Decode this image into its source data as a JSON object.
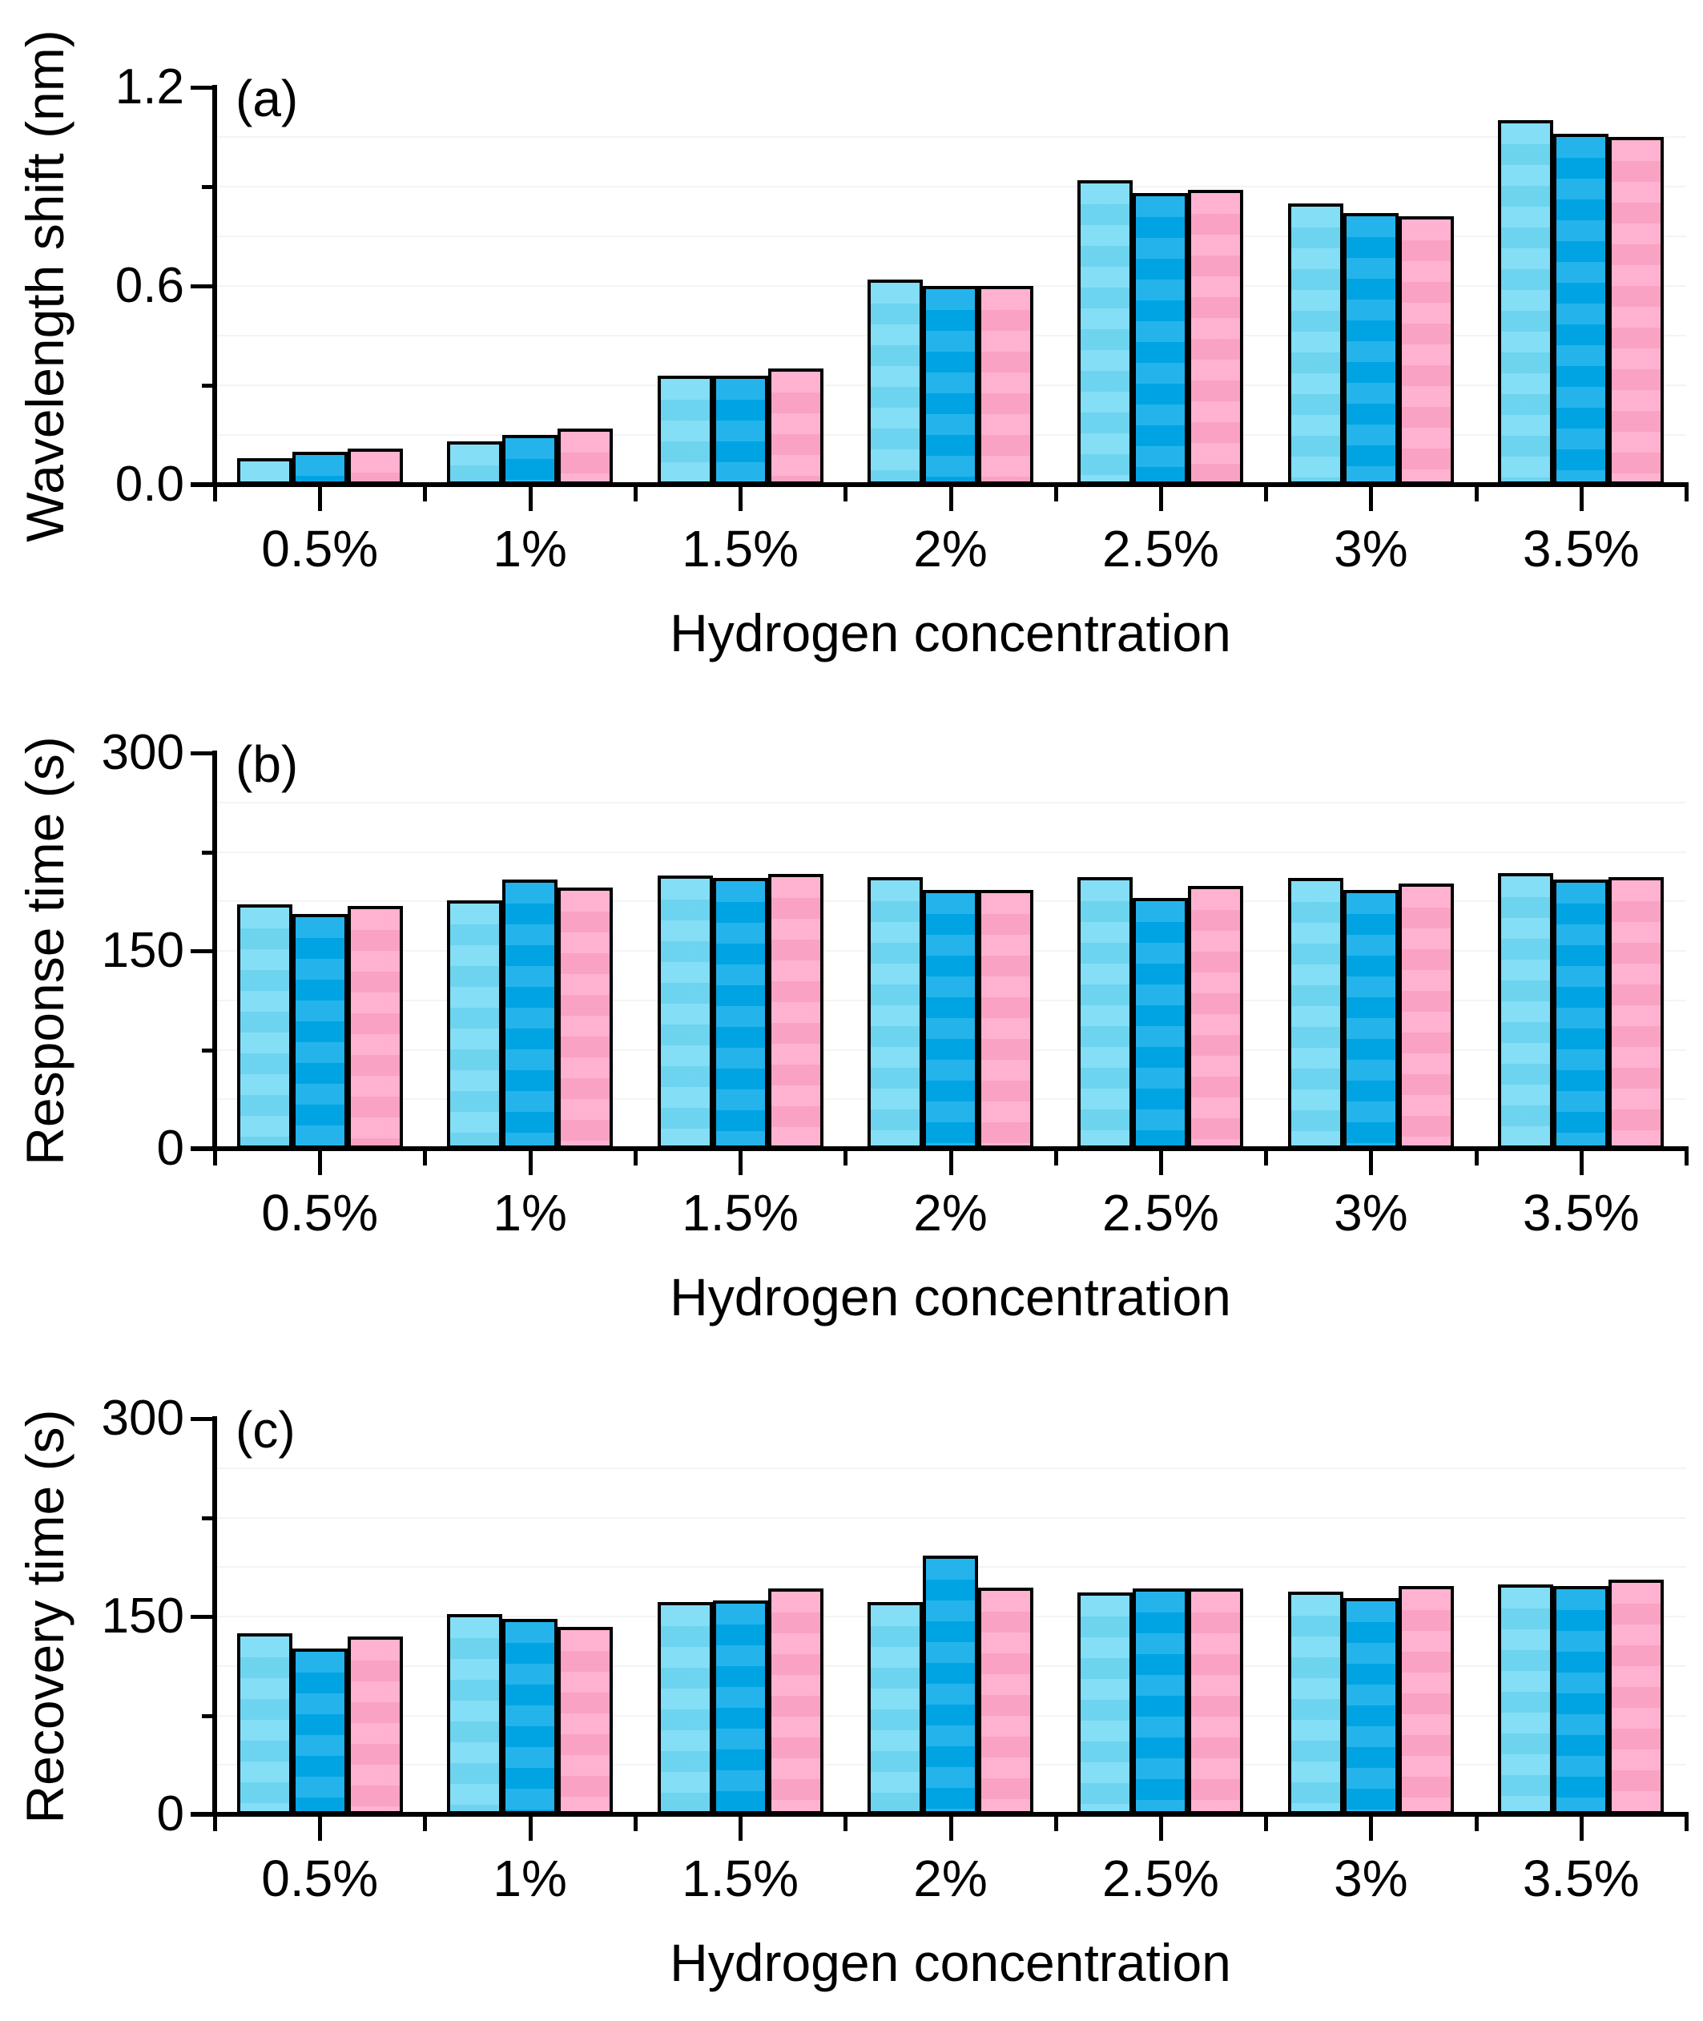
{
  "figure": {
    "background": "#ffffff",
    "outline_color": "#000000",
    "series_colors": [
      "#70D9F5",
      "#00A8E8",
      "#FFA6C9"
    ],
    "xlabel": "Hydrogen concentration",
    "categories": [
      "0.5%",
      "1%",
      "1.5%",
      "2%",
      "2.5%",
      "3%",
      "3.5%"
    ]
  },
  "chart_data": [
    {
      "panel_label": "(a)",
      "type": "bar",
      "ylabel": "Wavelength shift (nm)",
      "xlabel": "Hydrogen concentration",
      "categories": [
        "0.5%",
        "1%",
        "1.5%",
        "2%",
        "2.5%",
        "3%",
        "3.5%"
      ],
      "ylim": [
        0,
        1.2
      ],
      "yticks": [
        {
          "v": 0,
          "label": "0.0"
        },
        {
          "v": 0.6,
          "label": "0.6"
        },
        {
          "v": 1.2,
          "label": "1.2"
        }
      ],
      "minor_yticks": [
        0.3,
        0.9
      ],
      "legend": "none",
      "grid": "faint horizontal",
      "series": [
        {
          "color": "#70D9F5",
          "values": [
            0.08,
            0.13,
            0.33,
            0.62,
            0.92,
            0.85,
            1.1
          ]
        },
        {
          "color": "#00A8E8",
          "values": [
            0.1,
            0.15,
            0.33,
            0.6,
            0.88,
            0.82,
            1.06
          ]
        },
        {
          "color": "#FFA6C9",
          "values": [
            0.11,
            0.17,
            0.35,
            0.6,
            0.89,
            0.81,
            1.05
          ]
        }
      ]
    },
    {
      "panel_label": "(b)",
      "type": "bar",
      "ylabel": "Response time (s)",
      "xlabel": "Hydrogen concentration",
      "categories": [
        "0.5%",
        "1%",
        "1.5%",
        "2%",
        "2.5%",
        "3%",
        "3.5%"
      ],
      "ylim": [
        0,
        300
      ],
      "yticks": [
        {
          "v": 0,
          "label": "0"
        },
        {
          "v": 150,
          "label": "150"
        },
        {
          "v": 300,
          "label": "300"
        }
      ],
      "minor_yticks": [
        75,
        225
      ],
      "legend": "none",
      "grid": "faint horizontal",
      "series": [
        {
          "color": "#70D9F5",
          "values": [
            185,
            188,
            207,
            206,
            206,
            205,
            209
          ]
        },
        {
          "color": "#00A8E8",
          "values": [
            178,
            204,
            205,
            196,
            190,
            196,
            204
          ]
        },
        {
          "color": "#FFA6C9",
          "values": [
            184,
            198,
            208,
            196,
            199,
            201,
            206
          ]
        }
      ]
    },
    {
      "panel_label": "(c)",
      "type": "bar",
      "ylabel": "Recovery time (s)",
      "xlabel": "Hydrogen concentration",
      "categories": [
        "0.5%",
        "1%",
        "1.5%",
        "2%",
        "2.5%",
        "3%",
        "3.5%"
      ],
      "ylim": [
        0,
        300
      ],
      "yticks": [
        {
          "v": 0,
          "label": "0"
        },
        {
          "v": 150,
          "label": "150"
        },
        {
          "v": 300,
          "label": "300"
        }
      ],
      "minor_yticks": [
        75,
        225
      ],
      "legend": "none",
      "grid": "faint horizontal",
      "series": [
        {
          "color": "#70D9F5",
          "values": [
            137,
            152,
            161,
            161,
            168,
            169,
            174
          ]
        },
        {
          "color": "#00A8E8",
          "values": [
            126,
            148,
            162,
            196,
            171,
            164,
            173
          ]
        },
        {
          "color": "#FFA6C9",
          "values": [
            135,
            142,
            171,
            172,
            171,
            173,
            178
          ]
        }
      ]
    }
  ]
}
